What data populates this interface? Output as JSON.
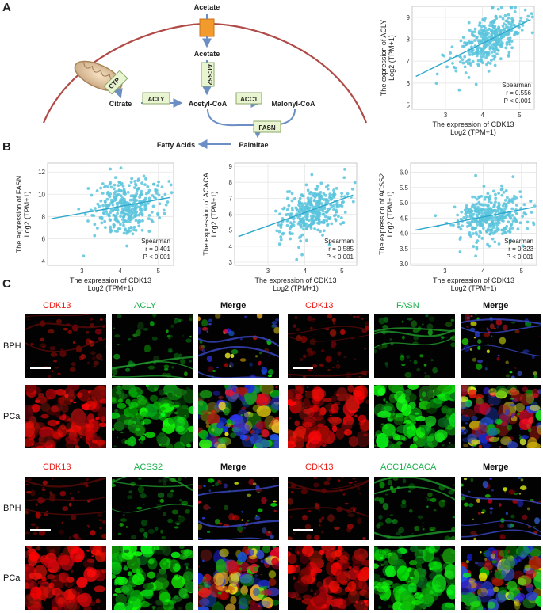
{
  "panels": {
    "a": "A",
    "b": "B",
    "c": "C"
  },
  "pathway": {
    "acetate_out": "Acetate",
    "acetate_in": "Acetate",
    "acss2": "ACSS2",
    "ctp": "CTP",
    "citrate": "Citrate",
    "acly": "ACLY",
    "acetyl_coa": "Acetyl-CoA",
    "acc1": "ACC1",
    "malonyl_coa": "Malonyl-CoA",
    "fasn": "FASN",
    "palmitae": "Palmitae",
    "fatty_acids": "Fatty Acids",
    "colors": {
      "membrane": "#b04a46",
      "arrow": "#6b8fc4",
      "enzyme_box": "#e9f4d0",
      "transporter": "#f39a2c"
    }
  },
  "chart_data": [
    {
      "type": "scatter",
      "ylabel_line1": "The expression of ACLY",
      "ylabel_line2": "Log2 (TPM+1)",
      "xlabel_line1": "The expression of CDK13",
      "xlabel_line2": "Log2 (TPM+1)",
      "xticks": [
        "3",
        "4",
        "5"
      ],
      "yticks": [
        "5",
        "6",
        "7",
        "8",
        "9"
      ],
      "xlim": [
        2.1,
        5.4
      ],
      "ylim": [
        4.8,
        9.5
      ],
      "stat_method": "Spearman",
      "r_text": "r = 0.556",
      "p_text": "P < 0.001",
      "r": 0.556,
      "fit": {
        "x": [
          2.2,
          5.3
        ],
        "y": [
          6.3,
          8.9
        ]
      },
      "point_color": "#5bc4dd",
      "n_points": 360,
      "center": [
        4.2,
        7.9
      ]
    },
    {
      "type": "scatter",
      "ylabel_line1": "The expression of FASN",
      "ylabel_line2": "Log2 (TPM+1)",
      "xlabel_line1": "The expression of CDK13",
      "xlabel_line2": "Log2 (TPM+1)",
      "xticks": [
        "3",
        "4",
        "5"
      ],
      "yticks": [
        "4",
        "6",
        "8",
        "10",
        "12"
      ],
      "xlim": [
        2.1,
        5.4
      ],
      "ylim": [
        3.6,
        12.8
      ],
      "stat_method": "Spearman",
      "r_text": "r = 0.401",
      "p_text": "P < 0.001",
      "r": 0.401,
      "fit": {
        "x": [
          2.2,
          5.3
        ],
        "y": [
          7.8,
          9.7
        ]
      },
      "point_color": "#5bc4dd",
      "n_points": 360,
      "center": [
        4.2,
        8.9
      ]
    },
    {
      "type": "scatter",
      "ylabel_line1": "The expression of ACACA",
      "ylabel_line2": "Log2 (TPM+1)",
      "xlabel_line1": "The expression of CDK13",
      "xlabel_line2": "Log2 (TPM+1)",
      "xticks": [
        "3",
        "4",
        "5"
      ],
      "yticks": [
        "3",
        "4",
        "5",
        "6",
        "7",
        "8",
        "9"
      ],
      "xlim": [
        2.1,
        5.4
      ],
      "ylim": [
        2.8,
        9.2
      ],
      "stat_method": "Spearman",
      "r_text": "r = 0.585",
      "p_text": "P < 0.001",
      "r": 0.585,
      "fit": {
        "x": [
          2.2,
          5.3
        ],
        "y": [
          4.6,
          7.2
        ]
      },
      "point_color": "#5bc4dd",
      "n_points": 360,
      "center": [
        4.2,
        6.2
      ]
    },
    {
      "type": "scatter",
      "ylabel_line1": "The expression of ACSS2",
      "ylabel_line2": "Log2 (TPM+1)",
      "xlabel_line1": "The expression of CDK13",
      "xlabel_line2": "Log2 (TPM+1)",
      "xticks": [
        "3",
        "4",
        "5"
      ],
      "yticks": [
        "3.0",
        "3.5",
        "4.0",
        "4.5",
        "5.0",
        "5.5",
        "6.0"
      ],
      "xlim": [
        2.1,
        5.4
      ],
      "ylim": [
        2.95,
        6.3
      ],
      "stat_method": "Spearman",
      "r_text": "r = 0.323",
      "p_text": "P < 0.001",
      "r": 0.323,
      "fit": {
        "x": [
          2.2,
          5.3
        ],
        "y": [
          4.1,
          4.85
        ]
      },
      "point_color": "#5bc4dd",
      "n_points": 360,
      "center": [
        4.2,
        4.55
      ]
    }
  ],
  "micrographs": {
    "groups": [
      {
        "cdk": "CDK13",
        "target": "ACLY",
        "merge": "Merge"
      },
      {
        "cdk": "CDK13",
        "target": "FASN",
        "merge": "Merge"
      },
      {
        "cdk": "CDK13",
        "target": "ACSS2",
        "merge": "Merge"
      },
      {
        "cdk": "CDK13",
        "target": "ACC1/ACACA",
        "merge": "Merge"
      }
    ],
    "rows": {
      "bph": "BPH",
      "pca": "PCa"
    },
    "colors": {
      "red": "#e8201a",
      "green": "#18b04a"
    }
  }
}
